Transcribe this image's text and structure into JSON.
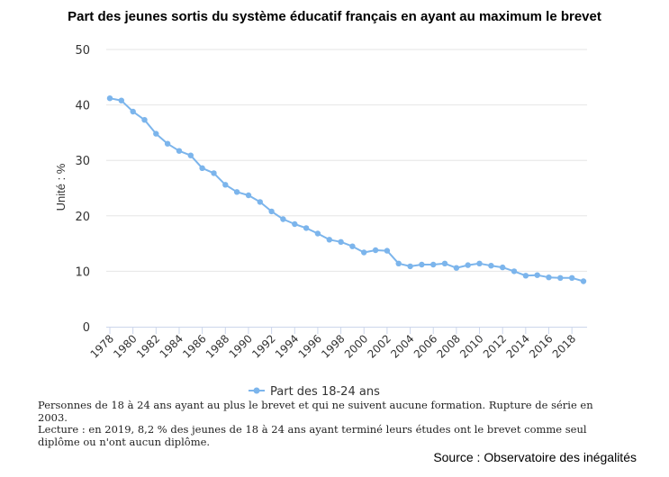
{
  "chart_data": {
    "type": "line",
    "title": "Part des jeunes sortis du système éducatif français en ayant au maximum le brevet",
    "xlabel": "",
    "ylabel": "Unité : %",
    "ylim": [
      0,
      50
    ],
    "yticks": [
      0,
      10,
      20,
      30,
      40,
      50
    ],
    "grid": true,
    "legend_position": "bottom-center",
    "x": [
      1978,
      1979,
      1980,
      1981,
      1982,
      1983,
      1984,
      1985,
      1986,
      1987,
      1988,
      1989,
      1990,
      1991,
      1992,
      1993,
      1994,
      1995,
      1996,
      1997,
      1998,
      1999,
      2000,
      2001,
      2002,
      2003,
      2004,
      2005,
      2006,
      2007,
      2008,
      2009,
      2010,
      2011,
      2012,
      2013,
      2014,
      2015,
      2016,
      2017,
      2018,
      2019
    ],
    "xtick_labels": [
      "1978",
      "1980",
      "1982",
      "1984",
      "1986",
      "1988",
      "1990",
      "1992",
      "1994",
      "1996",
      "1998",
      "2000",
      "2002",
      "2004",
      "2006",
      "2008",
      "2010",
      "2012",
      "2014",
      "2016",
      "2018"
    ],
    "series": [
      {
        "name": "Part des 18-24 ans",
        "color": "#7cb5ec",
        "values": [
          41.2,
          40.8,
          38.8,
          37.3,
          34.8,
          33.0,
          31.7,
          30.9,
          28.6,
          27.7,
          25.6,
          24.3,
          23.7,
          22.5,
          20.8,
          19.4,
          18.5,
          17.8,
          16.8,
          15.7,
          15.3,
          14.5,
          13.4,
          13.8,
          13.7,
          11.4,
          10.9,
          11.2,
          11.2,
          11.4,
          10.6,
          11.1,
          11.4,
          11.0,
          10.7,
          10.0,
          9.2,
          9.3,
          8.9,
          8.8,
          8.8,
          8.2
        ]
      }
    ]
  },
  "notes": {
    "line1": "Personnes de 18 à 24 ans ayant au plus le brevet et qui ne suivent aucune formation. Rupture de série en 2003.",
    "line2": "Lecture : en 2019, 8,2 % des jeunes de 18 à 24 ans ayant terminé leurs études ont le brevet comme seul diplôme ou n'ont aucun diplôme."
  },
  "source": "Source : Observatoire des inégalités",
  "colors": {
    "grid": "#e6e6e6",
    "axis_text": "#333333"
  }
}
